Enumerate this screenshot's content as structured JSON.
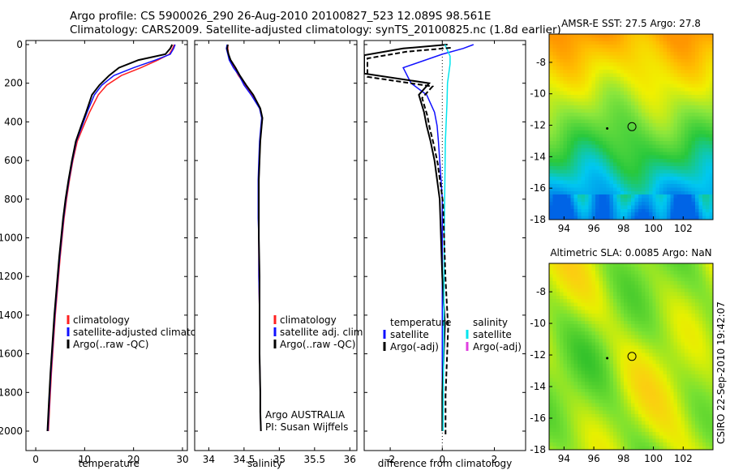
{
  "header": {
    "line1": "Argo profile: CS 5900026_290 26-Aug-2010 20100827_523 12.089S 98.561E",
    "line2": "Climatology: CARS2009. Satellite-adjusted climatology: synTS_20100825.nc (1.8d earlier)"
  },
  "footer_credit": "CSIRO 22-Sep-2010 19:42:07",
  "colors": {
    "climatology": "#ff2020",
    "satellite": "#1010ff",
    "argo": "#000000",
    "sal_satellite": "#00e5ee",
    "sal_argo": "#e040e0"
  },
  "chart_data": [
    {
      "type": "line",
      "xlabel": "temperature",
      "ylabel": "",
      "xlim": [
        -2,
        31
      ],
      "ylim": [
        2050,
        0
      ],
      "y_reversed": true,
      "xticks": [
        0,
        10,
        20,
        30
      ],
      "yticks": [
        0,
        200,
        400,
        600,
        800,
        1000,
        1200,
        1400,
        1600,
        1800,
        2000
      ],
      "legend": [
        "climatology",
        "satellite-adjusted climatology",
        "Argo(..raw -QC)"
      ],
      "legend_placement": "lower-right",
      "series": [
        {
          "name": "climatology",
          "color": "#ff2020",
          "x": [
            28.3,
            28.0,
            27.3,
            25.0,
            21.5,
            17.5,
            14.5,
            12.8,
            11.0,
            9.8,
            8.5,
            7.6,
            6.9,
            6.3,
            5.8,
            5.4,
            5.0,
            4.5,
            4.0,
            3.6,
            3.2,
            2.9,
            2.6
          ],
          "y": [
            0,
            20,
            50,
            80,
            120,
            160,
            210,
            260,
            350,
            420,
            500,
            600,
            700,
            800,
            900,
            1000,
            1100,
            1250,
            1400,
            1550,
            1700,
            1850,
            2000
          ]
        },
        {
          "name": "satellite-adjusted climatology",
          "color": "#1010ff",
          "x": [
            28.5,
            28.2,
            27.5,
            24.5,
            20.0,
            16.0,
            13.5,
            12.0,
            10.5,
            9.5,
            8.3,
            7.5,
            6.8,
            6.2,
            5.7,
            5.3,
            4.9,
            4.4,
            3.9,
            3.5,
            3.1,
            2.8,
            2.5
          ],
          "y": [
            0,
            20,
            50,
            80,
            120,
            160,
            210,
            260,
            350,
            420,
            500,
            600,
            700,
            800,
            900,
            1000,
            1100,
            1250,
            1400,
            1550,
            1700,
            1850,
            2000
          ]
        },
        {
          "name": "Argo(..raw -QC)",
          "color": "#000000",
          "x": [
            27.9,
            27.5,
            26.5,
            21.0,
            17.0,
            15.0,
            13.0,
            11.5,
            10.3,
            9.3,
            8.2,
            7.4,
            6.7,
            6.1,
            5.6,
            5.2,
            4.8,
            4.3,
            3.8,
            3.4,
            3.0,
            2.7,
            2.4
          ],
          "y": [
            0,
            20,
            50,
            80,
            120,
            160,
            210,
            260,
            350,
            420,
            500,
            600,
            700,
            800,
            900,
            1000,
            1100,
            1250,
            1400,
            1550,
            1700,
            1850,
            2000
          ]
        }
      ]
    },
    {
      "type": "line",
      "xlabel": "salinity",
      "ylabel": "",
      "xlim": [
        33.8,
        36.1
      ],
      "ylim": [
        2050,
        0
      ],
      "y_reversed": true,
      "xticks": [
        34,
        34.5,
        35,
        35.5,
        36
      ],
      "legend": [
        "climatology",
        "satellite adj. clim.",
        "Argo(..raw -QC)"
      ],
      "legend_placement": "lower-right",
      "annotation_lines": [
        "Argo AUSTRALIA",
        "PI: Susan Wijffels"
      ],
      "series": [
        {
          "name": "climatology",
          "color": "#ff2020",
          "x": [
            34.27,
            34.27,
            34.28,
            34.3,
            34.36,
            34.42,
            34.52,
            34.62,
            34.72,
            34.76,
            34.75,
            34.73,
            34.72,
            34.71,
            34.71,
            34.71,
            34.71,
            34.71,
            34.72,
            34.72,
            34.73,
            34.73,
            34.74
          ],
          "y": [
            0,
            20,
            50,
            80,
            120,
            160,
            210,
            260,
            330,
            380,
            420,
            500,
            600,
            700,
            800,
            900,
            1000,
            1200,
            1400,
            1600,
            1800,
            1900,
            2000
          ]
        },
        {
          "name": "satellite adj. clim.",
          "color": "#1010ff",
          "x": [
            34.26,
            34.25,
            34.27,
            34.29,
            34.35,
            34.43,
            34.5,
            34.6,
            34.72,
            34.75,
            34.74,
            34.72,
            34.71,
            34.7,
            34.7,
            34.7,
            34.71,
            34.71,
            34.72,
            34.72,
            34.73,
            34.73,
            34.74
          ],
          "y": [
            0,
            20,
            50,
            80,
            120,
            160,
            210,
            260,
            330,
            380,
            420,
            500,
            600,
            700,
            800,
            900,
            1000,
            1200,
            1400,
            1600,
            1800,
            1900,
            2000
          ]
        },
        {
          "name": "Argo(..raw -QC)",
          "color": "#000000",
          "x": [
            34.27,
            34.26,
            34.28,
            34.31,
            34.38,
            34.44,
            34.53,
            34.63,
            34.73,
            34.76,
            34.75,
            34.73,
            34.72,
            34.71,
            34.71,
            34.71,
            34.71,
            34.72,
            34.72,
            34.72,
            34.73,
            34.73,
            34.74
          ],
          "y": [
            0,
            20,
            50,
            80,
            120,
            160,
            210,
            260,
            330,
            380,
            420,
            500,
            600,
            700,
            800,
            900,
            1000,
            1200,
            1400,
            1600,
            1800,
            1900,
            2000
          ]
        }
      ]
    },
    {
      "type": "line",
      "xlabel": "difference from climatology",
      "ylabel": "",
      "xlim": [
        -3.0,
        3.2
      ],
      "ylim": [
        2050,
        0
      ],
      "y_reversed": true,
      "xticks": [
        -2,
        0,
        2
      ],
      "legend_temperature_title": "temperature",
      "legend_salinity_title": "salinity",
      "legend_temperature": [
        "satellite",
        "Argo(-adj)"
      ],
      "legend_salinity": [
        "satellite",
        "Argo(-adj)"
      ],
      "legend_placement": "lower-center",
      "series": [
        {
          "name": "temperature satellite",
          "color": "#1010ff",
          "x": [
            1.2,
            0.8,
            0.0,
            -1.5,
            -1.2,
            -0.6,
            -0.3,
            -0.2,
            -0.15,
            -0.1,
            -0.05,
            0.0,
            0.0,
            0.0,
            0.0,
            0.0,
            0.0
          ],
          "y": [
            0,
            20,
            50,
            120,
            200,
            260,
            350,
            420,
            500,
            600,
            700,
            800,
            1000,
            1200,
            1500,
            1800,
            2000
          ]
        },
        {
          "name": "temperature Argo(-adj)",
          "color": "#000000",
          "x": [
            0.2,
            -1.5,
            -3.0,
            -3.0,
            -0.5,
            -0.9,
            -0.7,
            -0.6,
            -0.45,
            -0.3,
            -0.2,
            -0.1,
            -0.05,
            0.0,
            0.1,
            0.0,
            0.0
          ],
          "y": [
            0,
            20,
            55,
            150,
            200,
            260,
            350,
            420,
            500,
            600,
            700,
            800,
            1000,
            1200,
            1450,
            1800,
            2000
          ]
        },
        {
          "name": "salinity satellite",
          "color": "#00e5ee",
          "x": [
            0.1,
            0.2,
            0.3,
            0.3,
            0.25,
            0.2,
            0.18,
            0.15,
            0.12,
            0.1,
            0.08,
            0.07,
            0.06,
            0.05,
            0.04,
            0.03
          ],
          "y": [
            0,
            30,
            60,
            100,
            150,
            200,
            300,
            400,
            500,
            700,
            900,
            1100,
            1400,
            1600,
            1800,
            2000
          ]
        }
      ]
    }
  ],
  "maps": [
    {
      "title": "AMSR-E SST: 27.5 Argo: 27.8",
      "yticks": [
        -8,
        -10,
        -12,
        -14,
        -16,
        -18
      ],
      "xticks": [
        94,
        96,
        98,
        100,
        102
      ],
      "lon_range": [
        93.0,
        104.0
      ],
      "lat_range": [
        -18.0,
        -6.2
      ],
      "argo_marker": {
        "lon": 98.56,
        "lat": -12.09
      }
    },
    {
      "title": "Altimetric SLA: 0.0085 Argo: NaN",
      "yticks": [
        -8,
        -10,
        -12,
        -14,
        -16,
        -18
      ],
      "xticks": [
        94,
        96,
        98,
        100,
        102
      ],
      "lon_range": [
        93.0,
        104.0
      ],
      "lat_range": [
        -18.0,
        -6.2
      ],
      "argo_marker": {
        "lon": 98.56,
        "lat": -12.09
      }
    }
  ]
}
